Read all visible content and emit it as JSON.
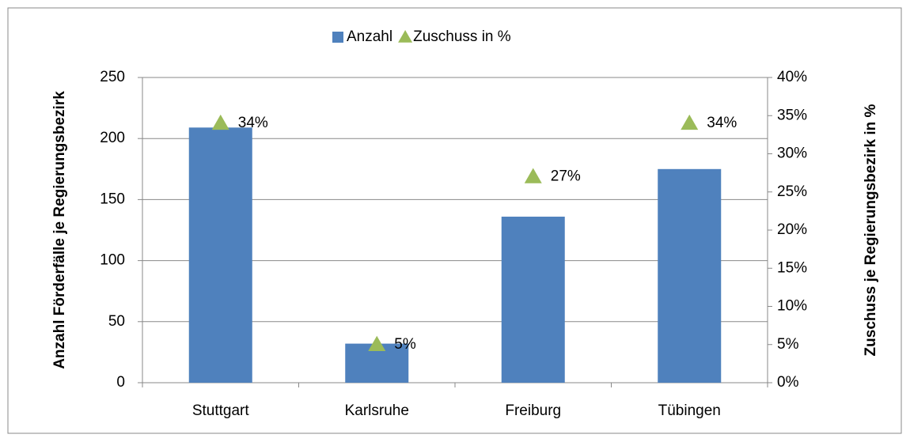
{
  "chart_data": {
    "type": "bar",
    "categories": [
      "Stuttgart",
      "Karlsruhe",
      "Freiburg",
      "Tübingen"
    ],
    "series": [
      {
        "name": "Anzahl",
        "color": "#4f81bd",
        "type": "bar",
        "values": [
          209,
          32,
          136,
          175
        ]
      },
      {
        "name": "Zuschuss in %",
        "color": "#9bbb59",
        "type": "marker",
        "marker": "triangle",
        "axis": "y2",
        "values": [
          34,
          5,
          27,
          34
        ],
        "value_labels": [
          "34%",
          "5%",
          "27%",
          "34%"
        ]
      }
    ],
    "ylabel": "Anzahl Förderfälle je Regierungsbezirk",
    "y2label": "Zuschuss je Regierungsbezirk in %",
    "ylim": [
      0,
      250
    ],
    "yticks": [
      0,
      50,
      100,
      150,
      200,
      250
    ],
    "y2lim": [
      0,
      40
    ],
    "y2ticks": [
      {
        "value": 0,
        "label": "0%"
      },
      {
        "value": 5,
        "label": "5%"
      },
      {
        "value": 10,
        "label": "10%"
      },
      {
        "value": 15,
        "label": "15%"
      },
      {
        "value": 20,
        "label": "20%"
      },
      {
        "value": 25,
        "label": "25%"
      },
      {
        "value": 30,
        "label": "30%"
      },
      {
        "value": 35,
        "label": "35%"
      },
      {
        "value": 40,
        "label": "40%"
      }
    ],
    "grid": true,
    "legend": "top"
  }
}
